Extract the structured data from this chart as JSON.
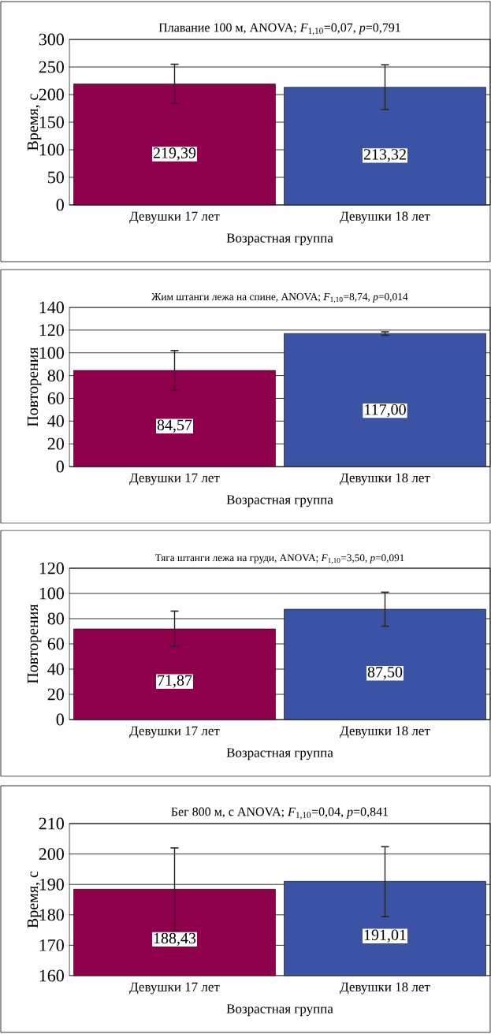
{
  "chart_data": [
    {
      "type": "bar",
      "title": "Плавание 100 м, ANOVA; *F*$_{1,10}$=0,07, *p*=0,791",
      "xlabel": "Возрастная группа",
      "ylabel": "Время, с",
      "categories": [
        "Девушки 17 лет",
        "Девушки 18 лет"
      ],
      "values": [
        219.39,
        213.32
      ],
      "colors": [
        "#8e004b",
        "#3a53a4"
      ],
      "errors": [
        [
          184,
          255
        ],
        [
          173,
          254
        ]
      ],
      "value_labels": [
        "219,39",
        "213,32"
      ],
      "ylim": [
        0,
        300
      ],
      "yticks": [
        0,
        50,
        100,
        150,
        200,
        250,
        300
      ],
      "grid": "y"
    },
    {
      "type": "bar",
      "title": "Жим штанги лежа на спине, ANOVA; *F*$_{1,10}$=8,74, *p*=0,014",
      "xlabel": "Возрастная группа",
      "ylabel": "Повторения",
      "categories": [
        "Девушки 17 лет",
        "Девушки 18 лет"
      ],
      "values": [
        84.57,
        117.0
      ],
      "colors": [
        "#8e004b",
        "#3a53a4"
      ],
      "errors": [
        [
          67,
          102
        ],
        [
          115.5,
          118.5
        ]
      ],
      "value_labels": [
        "84,57",
        "117,00"
      ],
      "ylim": [
        0,
        140
      ],
      "yticks": [
        0,
        20,
        40,
        60,
        80,
        100,
        120,
        140
      ],
      "grid": "y"
    },
    {
      "type": "bar",
      "title": "Тяга штанги лежа на груди, ANOVA; *F*$_{1,10}$=3,50, *p*=0,091",
      "xlabel": "Возрастная группа",
      "ylabel": "Повторения",
      "categories": [
        "Девушки 17 лет",
        "Девушки 18 лет"
      ],
      "values": [
        71.87,
        87.5
      ],
      "colors": [
        "#8e004b",
        "#3a53a4"
      ],
      "errors": [
        [
          58,
          86
        ],
        [
          74,
          101
        ]
      ],
      "value_labels": [
        "71,87",
        "87,50"
      ],
      "ylim": [
        0,
        120
      ],
      "yticks": [
        0,
        20,
        40,
        60,
        80,
        100,
        120
      ],
      "grid": "y"
    },
    {
      "type": "bar",
      "title": "Бег 800 м, с  ANOVA; *F*$_{1,10}$=0,04, *p*=0,841",
      "xlabel": "Возрастная группа",
      "ylabel": "Время, с",
      "categories": [
        "Девушки 17 лет",
        "Девушки 18 лет"
      ],
      "values": [
        188.43,
        191.01
      ],
      "colors": [
        "#8e004b",
        "#3a53a4"
      ],
      "errors": [
        [
          174.6,
          202
        ],
        [
          179.4,
          202.4
        ]
      ],
      "value_labels": [
        "188,43",
        "191,01"
      ],
      "ylim": [
        160,
        210
      ],
      "yticks": [
        160,
        170,
        180,
        190,
        200,
        210
      ],
      "grid": "y"
    }
  ]
}
